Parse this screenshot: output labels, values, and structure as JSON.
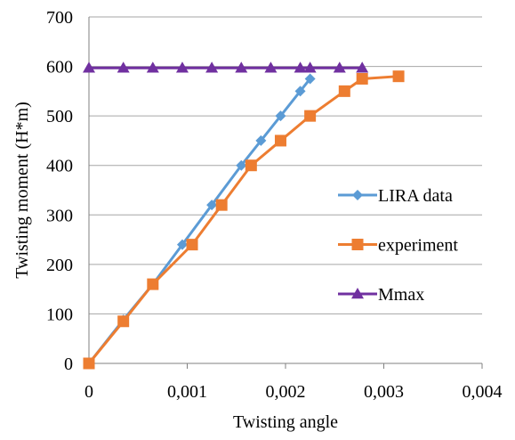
{
  "chart_data": {
    "type": "line",
    "xlabel": "Twisting angle",
    "ylabel": "Twisting moment (H*m)",
    "xlim": [
      0,
      0.004
    ],
    "ylim": [
      0,
      700
    ],
    "x_ticks": [
      "0",
      "0,001",
      "0,002",
      "0,003",
      "0,004"
    ],
    "y_ticks": [
      "0",
      "100",
      "200",
      "300",
      "400",
      "500",
      "600",
      "700"
    ],
    "grid": "horizontal",
    "legend_position": "right",
    "series": [
      {
        "name": "LIRA data",
        "color": "#5b9bd5",
        "marker": "diamond",
        "points": [
          [
            0,
            0
          ],
          [
            0.00035,
            88
          ],
          [
            0.00065,
            160
          ],
          [
            0.00095,
            240
          ],
          [
            0.00125,
            320
          ],
          [
            0.00155,
            400
          ],
          [
            0.00175,
            450
          ],
          [
            0.00195,
            500
          ],
          [
            0.00215,
            550
          ],
          [
            0.00225,
            575
          ]
        ]
      },
      {
        "name": "experiment",
        "color": "#ed7d31",
        "marker": "square",
        "points": [
          [
            0,
            0
          ],
          [
            0.00035,
            85
          ],
          [
            0.00065,
            160
          ],
          [
            0.00105,
            240
          ],
          [
            0.00135,
            320
          ],
          [
            0.00165,
            400
          ],
          [
            0.00195,
            450
          ],
          [
            0.00225,
            500
          ],
          [
            0.0026,
            550
          ],
          [
            0.00278,
            575
          ],
          [
            0.00315,
            580
          ]
        ]
      },
      {
        "name": "Mmax",
        "color": "#7030a0",
        "marker": "triangle",
        "points": [
          [
            0,
            597
          ],
          [
            0.00035,
            597
          ],
          [
            0.00065,
            597
          ],
          [
            0.00095,
            597
          ],
          [
            0.00125,
            597
          ],
          [
            0.00155,
            597
          ],
          [
            0.00185,
            597
          ],
          [
            0.00215,
            597
          ],
          [
            0.00225,
            597
          ],
          [
            0.00255,
            597
          ],
          [
            0.00278,
            597
          ]
        ]
      }
    ]
  }
}
